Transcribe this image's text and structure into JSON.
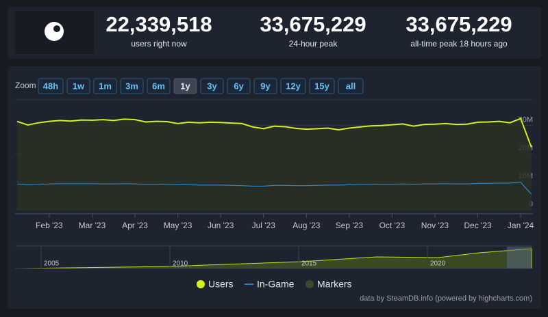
{
  "stats": [
    {
      "value": "22,339,518",
      "label": "users right now"
    },
    {
      "value": "33,675,229",
      "label": "24-hour peak"
    },
    {
      "value": "33,675,229",
      "label": "all-time peak 18 hours ago"
    }
  ],
  "zoom": {
    "label": "Zoom",
    "buttons": [
      "48h",
      "1w",
      "1m",
      "3m",
      "6m",
      "1y",
      "3y",
      "6y",
      "9y",
      "12y",
      "15y",
      "all"
    ],
    "active": "1y"
  },
  "chart_data": {
    "type": "line",
    "categories": [
      null,
      null,
      null,
      "Feb '23",
      null,
      null,
      null,
      "Mar '23",
      null,
      null,
      null,
      "Apr '23",
      null,
      null,
      null,
      "May '23",
      null,
      null,
      null,
      "Jun '23",
      null,
      null,
      null,
      "Jul '23",
      null,
      null,
      null,
      "Aug '23",
      null,
      null,
      null,
      "Sep '23",
      null,
      null,
      null,
      "Oct '23",
      null,
      null,
      null,
      "Nov '23",
      null,
      null,
      null,
      "Dec '23",
      null,
      null,
      null,
      "Jan '24",
      null
    ],
    "series": [
      {
        "name": "Users",
        "color": "#d4f21c",
        "values": [
          31.5,
          30.2,
          31,
          31.5,
          31.8,
          31.6,
          32,
          31.9,
          32.1,
          31.8,
          32.3,
          32.1,
          31.3,
          31.5,
          31.4,
          30.7,
          31.2,
          31,
          31.2,
          31.1,
          30.9,
          30.7,
          29.5,
          28.9,
          29.8,
          29.6,
          29,
          28.7,
          28.9,
          29.1,
          28.5,
          29.1,
          29.5,
          29.9,
          30,
          30.3,
          30.6,
          29.8,
          30.4,
          30.5,
          30.7,
          30.4,
          30.5,
          31.2,
          31.3,
          31.5,
          31,
          32.5,
          22.3
        ]
      },
      {
        "name": "In-Game",
        "color": "#2f82c4",
        "values": [
          9.2,
          8.9,
          9,
          9.2,
          9.3,
          9.3,
          9.3,
          9.3,
          9.2,
          9.2,
          9.3,
          9.2,
          9.1,
          9.1,
          9,
          8.9,
          8.9,
          8.8,
          8.8,
          8.8,
          8.7,
          8.6,
          8.4,
          8.4,
          8.7,
          8.7,
          8.6,
          8.6,
          8.7,
          8.8,
          8.8,
          8.9,
          9,
          9,
          9.1,
          9.1,
          9.2,
          9.1,
          9.2,
          9.2,
          9.3,
          9.2,
          9.2,
          9.4,
          9.4,
          9.5,
          9.5,
          9.8,
          5.5
        ]
      }
    ],
    "markers_legend": {
      "name": "Markers",
      "color": "#3b4a2a"
    },
    "ylim": [
      0,
      37.5
    ],
    "yticks": [
      0,
      {
        "value": 10,
        "label": "10M"
      },
      {
        "value": 20,
        "label": "20M"
      },
      {
        "value": 30,
        "label": "30M"
      }
    ],
    "grid": true
  },
  "navigator": {
    "years": [
      "2005",
      "2010",
      "2015",
      "2020"
    ]
  },
  "credit": "data by SteamDB.info (powered by highcharts.com)"
}
